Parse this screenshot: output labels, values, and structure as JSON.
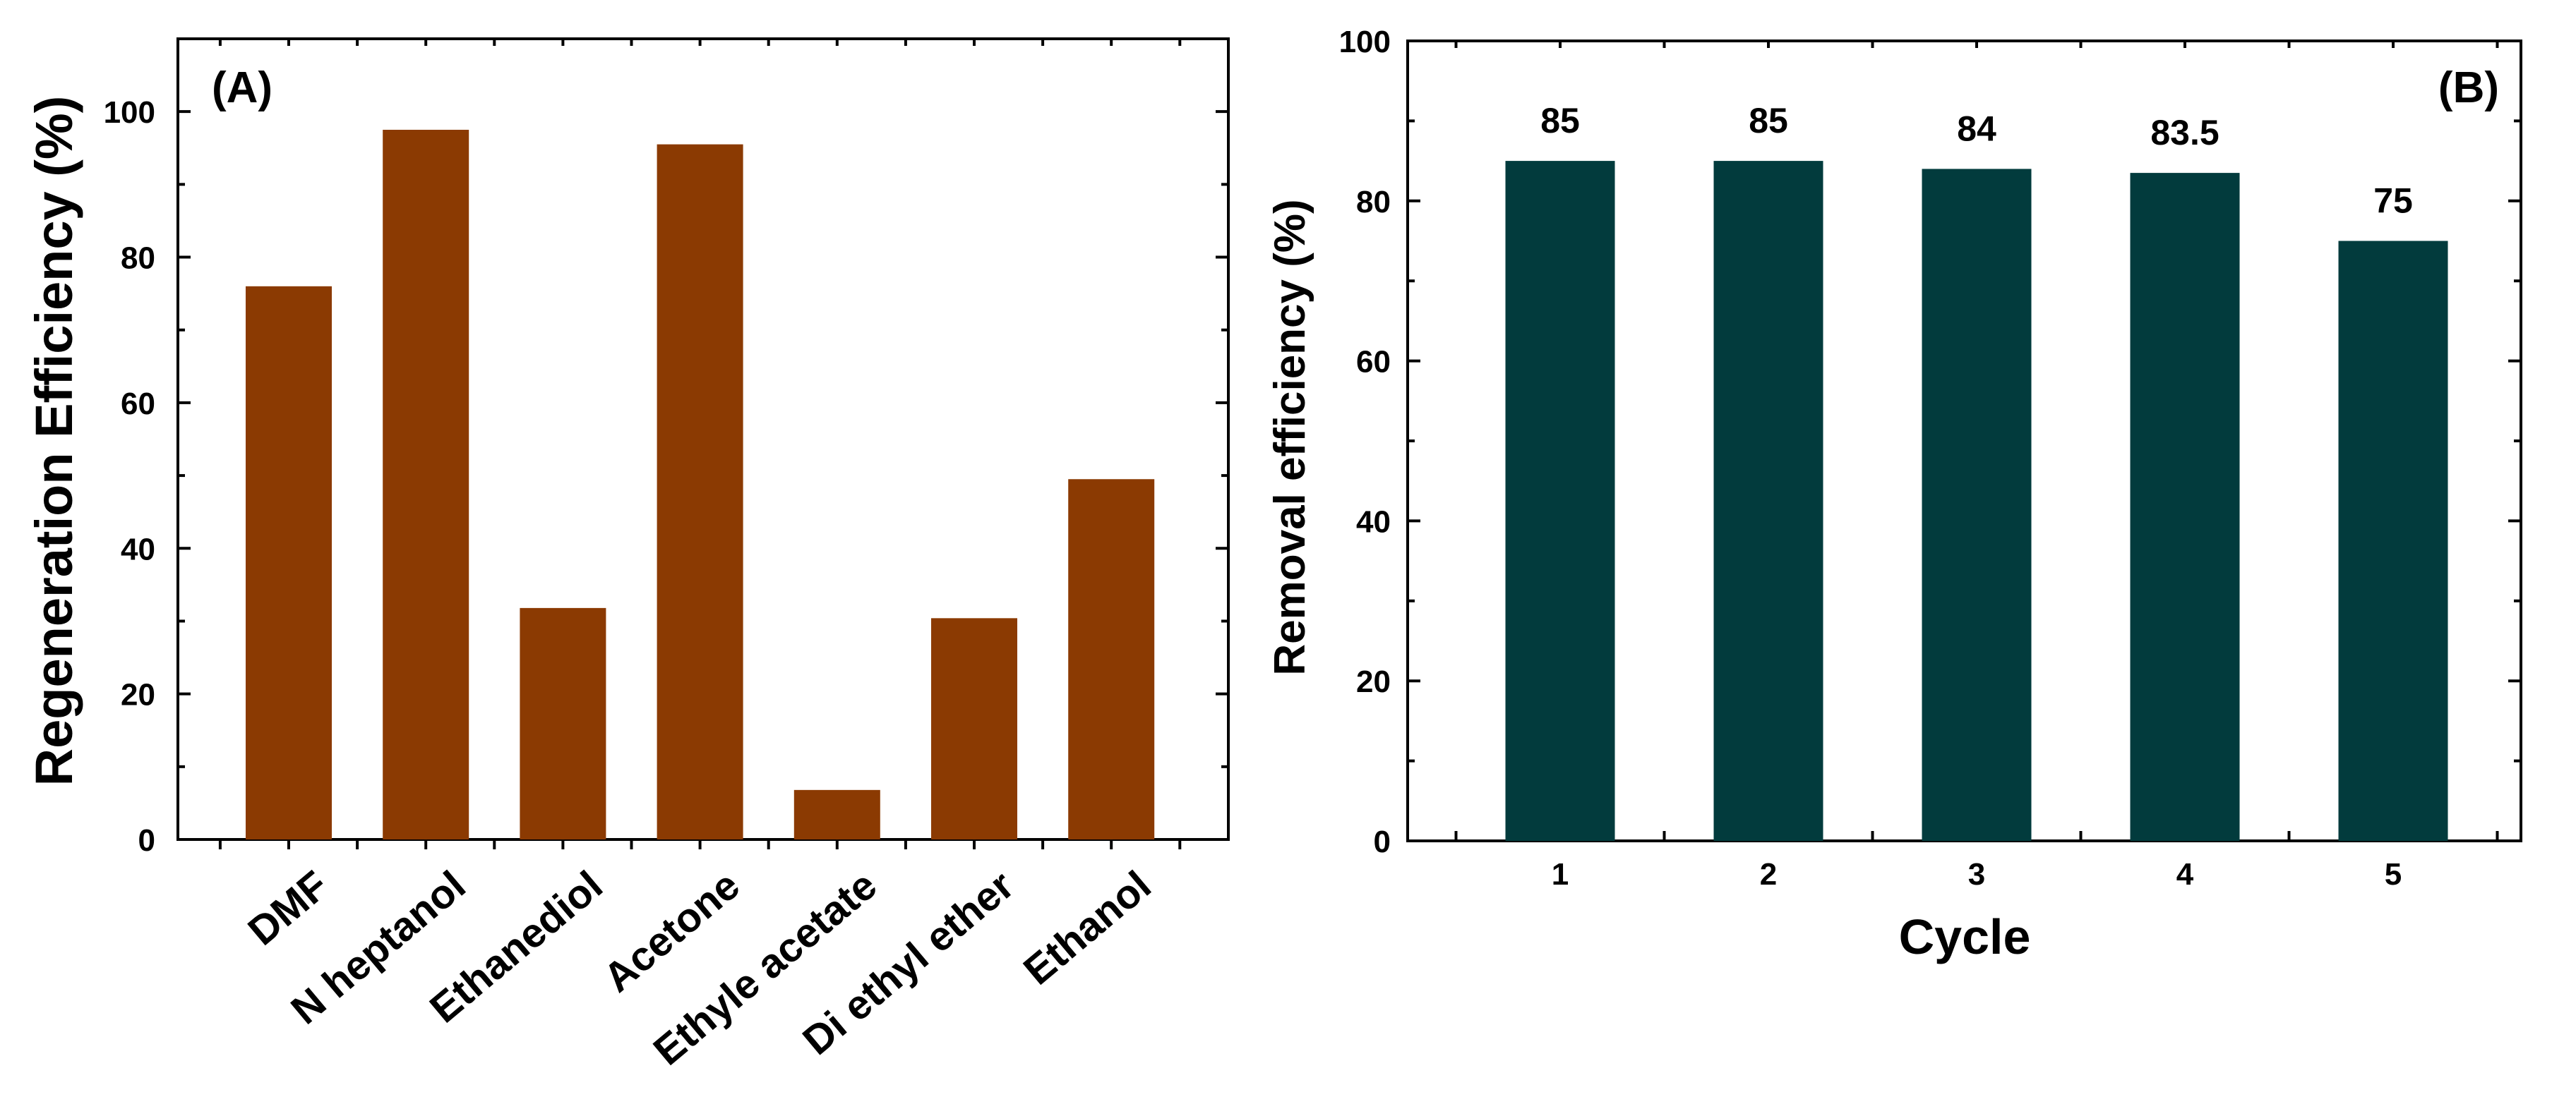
{
  "chart_data": [
    {
      "type": "bar",
      "panel_label": "(A)",
      "title": "",
      "xlabel": "",
      "ylabel": "Regeneration Efficiency (%)",
      "ylim": [
        0,
        110
      ],
      "yticks": [
        0,
        20,
        40,
        60,
        80,
        100
      ],
      "categories": [
        "DMF",
        "N heptanol",
        "Ethanediol",
        "Acetone",
        "Ethyle acetate",
        "Di ethyl ether",
        "Ethanol"
      ],
      "values": [
        76,
        97.5,
        31.8,
        95.5,
        6.8,
        30.4,
        49.5
      ],
      "bar_color": "#8B3A02",
      "grid": false,
      "legend": "none"
    },
    {
      "type": "bar",
      "panel_label": "(B)",
      "title": "",
      "xlabel": "Cycle",
      "ylabel": "Removal efficiency (%)",
      "ylim": [
        0,
        100
      ],
      "yticks": [
        0,
        20,
        40,
        60,
        80,
        100
      ],
      "categories": [
        "1",
        "2",
        "3",
        "4",
        "5"
      ],
      "values": [
        85,
        85,
        84,
        83.5,
        75
      ],
      "data_labels": [
        "85",
        "85",
        "84",
        "83.5",
        "75"
      ],
      "bar_color": "#023B3D",
      "grid": false,
      "legend": "none"
    }
  ]
}
